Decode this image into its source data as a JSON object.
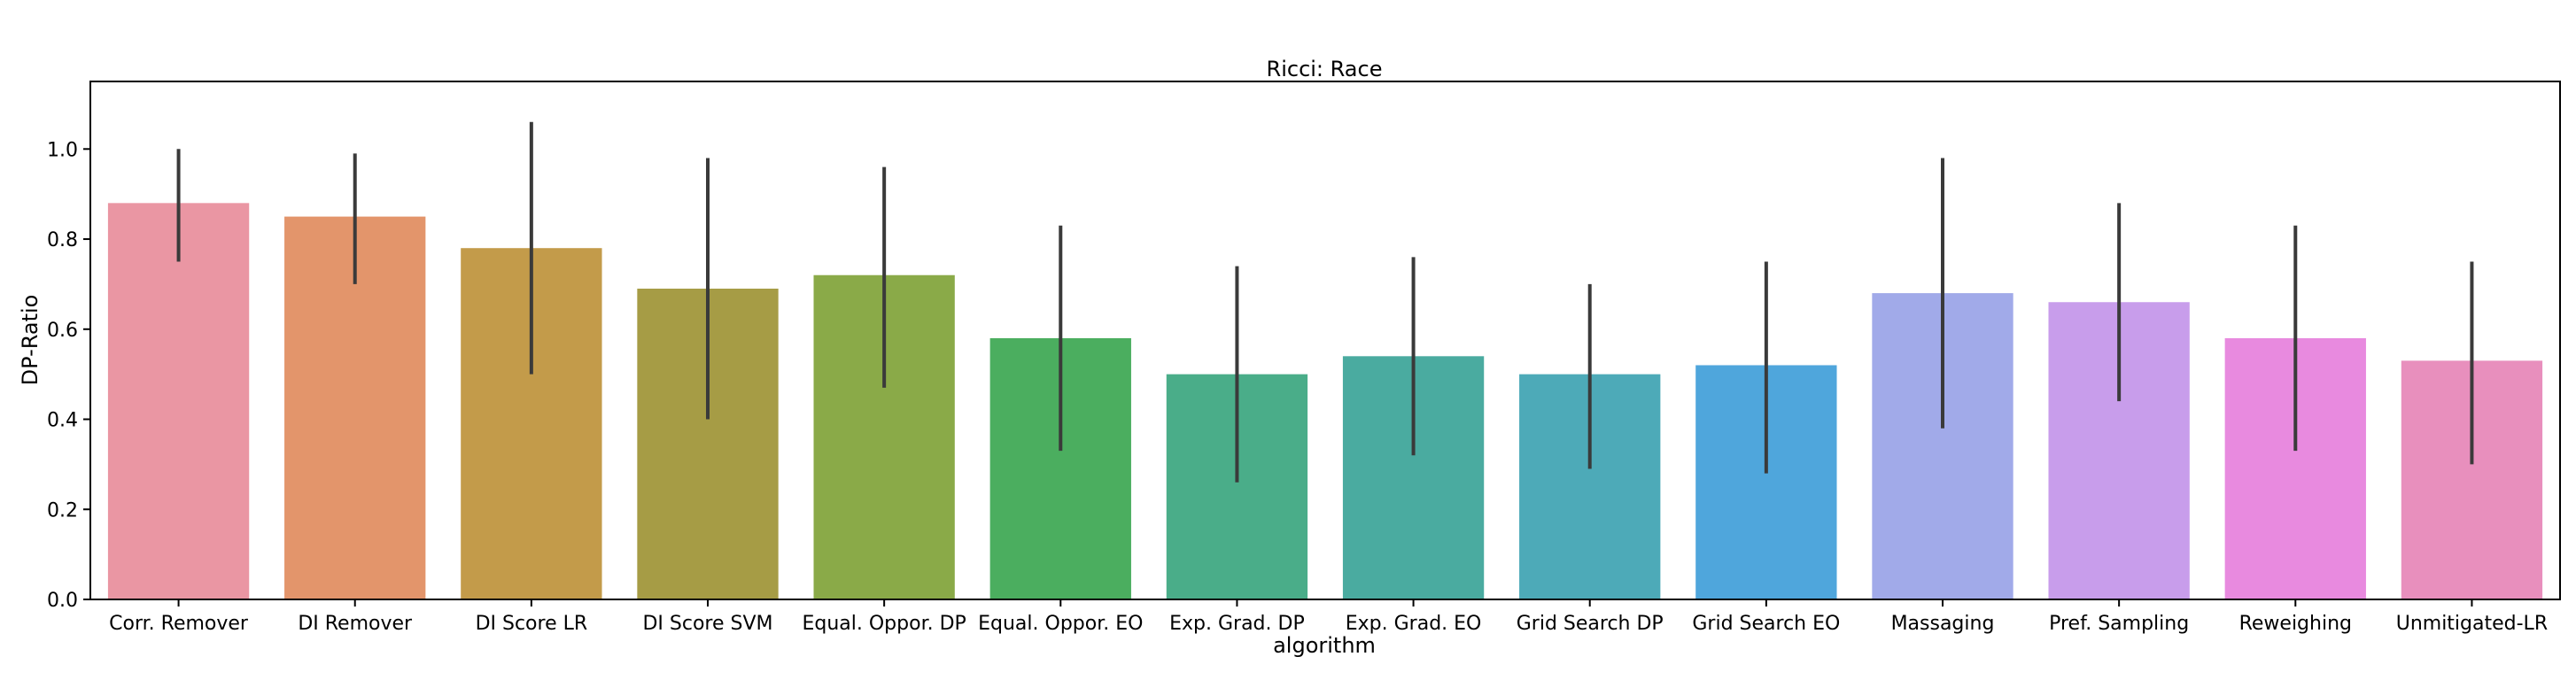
{
  "chart_data": {
    "type": "bar",
    "title": "Ricci: Race",
    "xlabel": "algorithm",
    "ylabel": "DP-Ratio",
    "ylim": [
      0,
      1.15
    ],
    "yticks": [
      "0.0",
      "0.2",
      "0.4",
      "0.6",
      "0.8",
      "1.0"
    ],
    "grid": false,
    "categories": [
      "Corr. Remover",
      "DI Remover",
      "DI Score LR",
      "DI Score SVM",
      "Equal. Oppor. DP",
      "Equal. Oppor. EO",
      "Exp. Grad. DP",
      "Exp. Grad. EO",
      "Grid Search DP",
      "Grid Search EO",
      "Massaging",
      "Pref. Sampling",
      "Reweighing",
      "Unmitigated-LR"
    ],
    "values": [
      0.88,
      0.85,
      0.78,
      0.69,
      0.72,
      0.58,
      0.5,
      0.54,
      0.5,
      0.52,
      0.68,
      0.66,
      0.58,
      0.53
    ],
    "error_low": [
      0.75,
      0.7,
      0.5,
      0.4,
      0.47,
      0.33,
      0.26,
      0.32,
      0.29,
      0.28,
      0.38,
      0.44,
      0.33,
      0.3
    ],
    "error_high": [
      1.0,
      0.99,
      1.06,
      0.98,
      0.96,
      0.83,
      0.74,
      0.76,
      0.7,
      0.75,
      0.98,
      0.88,
      0.83,
      0.75
    ],
    "colors": [
      "#ea96a3",
      "#e3956b",
      "#c39b4a",
      "#a69c45",
      "#8aaa48",
      "#4bae5f",
      "#4aad89",
      "#4aaba0",
      "#4daab8",
      "#4fa6dc",
      "#a1aae9",
      "#c89deb",
      "#e88adf",
      "#e88fbd"
    ],
    "error_color": "#3a3a3a"
  }
}
